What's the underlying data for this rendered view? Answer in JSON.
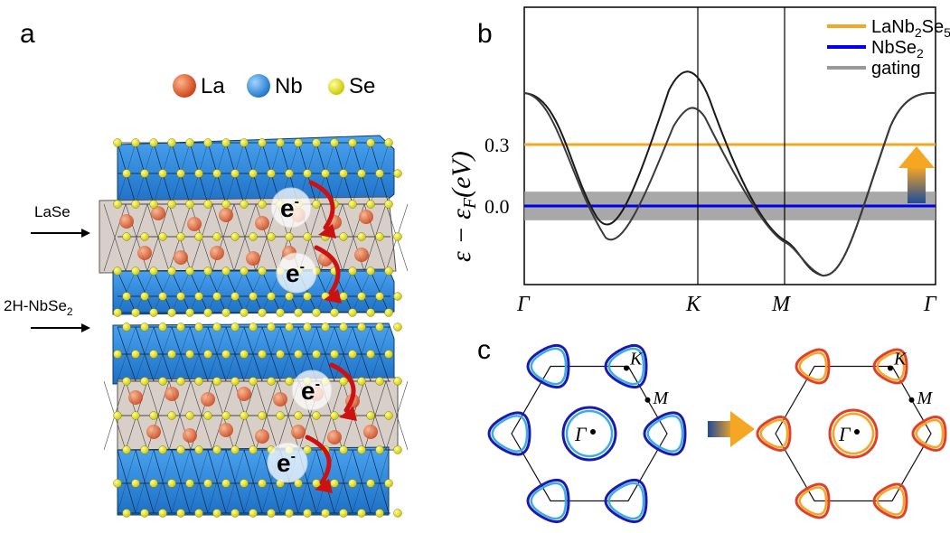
{
  "panels": {
    "a": "a",
    "b": "b",
    "c": "c"
  },
  "structure": {
    "atom_legend": [
      {
        "label": "La",
        "color": "#d9542b"
      },
      {
        "label": "Nb",
        "color": "#2f8fe0"
      },
      {
        "label": "Se",
        "color": "#e8e62a"
      }
    ],
    "layer_labels": {
      "lase": "LaSe",
      "nbse2_prefix": "2H-NbSe",
      "nbse2_sub": "2"
    },
    "electron_label": "e",
    "electron_sup": "-"
  },
  "chart_data": {
    "type": "line",
    "ylabel": "ε − ε_F(eV)",
    "x_ticks": [
      "Γ",
      "K",
      "M",
      "Γ"
    ],
    "y_ticks": [
      "0.3",
      "0.0"
    ],
    "legend": [
      {
        "name": "LaNb2Se5",
        "color": "#f5a623"
      },
      {
        "name": "NbSe2",
        "color": "#0000ee"
      },
      {
        "name": "gating",
        "color": "#999999"
      }
    ],
    "horizontal_lines": [
      {
        "name": "LaNb2Se5",
        "value": 0.3
      },
      {
        "name": "NbSe2",
        "value": 0.0
      }
    ]
  },
  "fermi_surface": {
    "left_labels": {
      "K": "K",
      "M": "M",
      "G": "Γ"
    },
    "right_labels": {
      "K": "K",
      "M": "M",
      "G": "Γ"
    }
  },
  "colors": {
    "orange": "#f5a623",
    "blue": "#0000ee",
    "gray": "#999999",
    "arrow_red": "#cc1111"
  }
}
